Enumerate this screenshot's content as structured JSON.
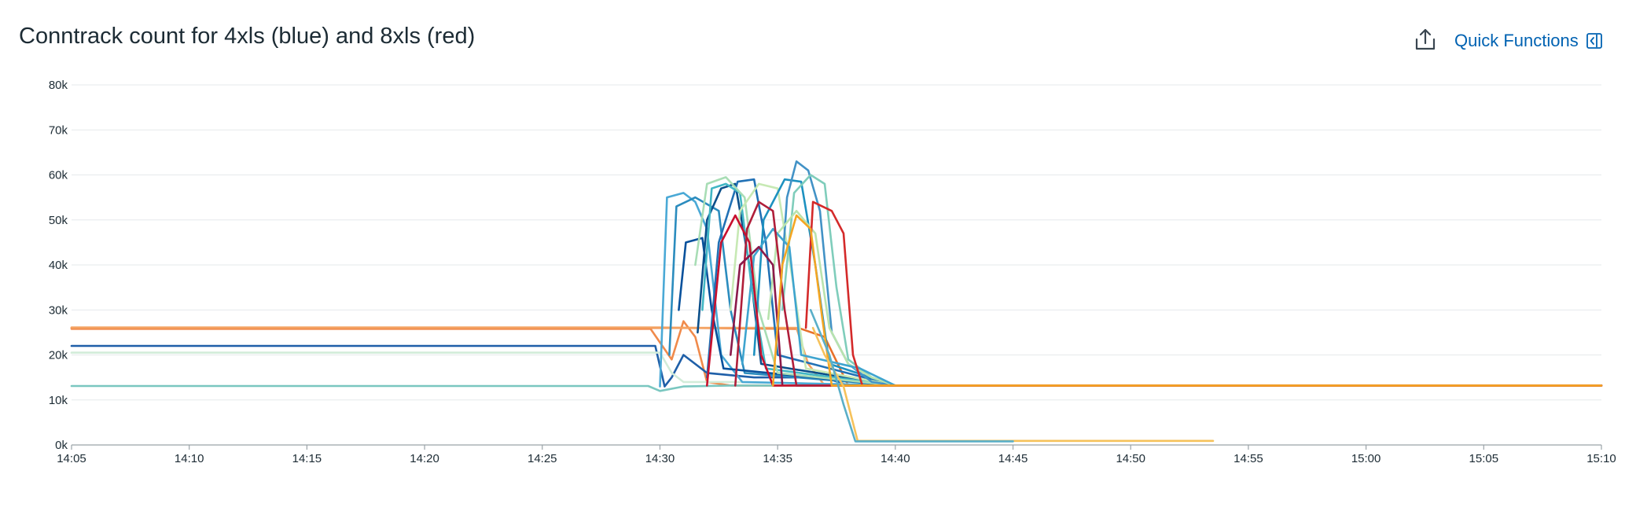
{
  "panel": {
    "title": "Conntrack count for 4xls (blue) and 8xls (red)",
    "quick_functions_label": "Quick Functions",
    "export_icon": "export-icon",
    "panel_toggle_icon": "collapse-panel-icon"
  },
  "colors": {
    "grid": "#e6e9eb",
    "axis": "#9aa3a8",
    "link": "#0062b2",
    "palette": [
      "#08519c",
      "#2171b5",
      "#4292c6",
      "#41b6c4",
      "#7fcdbb",
      "#a8ddb5",
      "#c7e9b4",
      "#d4efc4",
      "#1d91c0",
      "#0b4f8a",
      "#3ea4cf",
      "#b9e3ae"
    ]
  },
  "chart_data": {
    "type": "line",
    "title": "Conntrack count for 4xls (blue) and 8xls (red)",
    "xlabel": "",
    "ylabel": "",
    "x_ticks": [
      "14:05",
      "14:10",
      "14:15",
      "14:20",
      "14:25",
      "14:30",
      "14:35",
      "14:40",
      "14:45",
      "14:50",
      "14:55",
      "15:00",
      "15:05",
      "15:10"
    ],
    "y_ticks": [
      "0k",
      "10k",
      "20k",
      "30k",
      "40k",
      "50k",
      "60k",
      "70k",
      "80k"
    ],
    "xlim": [
      "14:05",
      "15:10"
    ],
    "ylim": [
      0,
      80000
    ],
    "grid": true,
    "legend": "none",
    "series": [
      {
        "color": "#e8702a",
        "values": [
          [
            "14:05",
            26000
          ],
          [
            "14:29.5",
            26000
          ],
          [
            "14:31",
            26000
          ],
          [
            "14:36",
            25800
          ],
          [
            "14:37",
            24000
          ],
          [
            "14:38",
            13200
          ],
          [
            "15:10",
            13200
          ]
        ]
      },
      {
        "color": "#f08a4b",
        "values": [
          [
            "14:05",
            25800
          ],
          [
            "14:29.6",
            25800
          ],
          [
            "14:30.5",
            19000
          ],
          [
            "14:31",
            27500
          ],
          [
            "14:31.5",
            24000
          ],
          [
            "14:32",
            14000
          ],
          [
            "14:33",
            13200
          ],
          [
            "15:10",
            13200
          ]
        ]
      },
      {
        "color": "#f4a261",
        "values": [
          [
            "14:05",
            26100
          ],
          [
            "14:30",
            26100
          ],
          [
            "14:31",
            26000
          ],
          [
            "14:35.8",
            26000
          ],
          [
            "14:36.3",
            18000
          ],
          [
            "14:37",
            13200
          ],
          [
            "15:10",
            13200
          ]
        ]
      },
      {
        "color": "#1f5fa8",
        "values": [
          [
            "14:05",
            22000
          ],
          [
            "14:29.8",
            22000
          ],
          [
            "14:30.2",
            13000
          ],
          [
            "14:30.5",
            15000
          ],
          [
            "14:31",
            20000
          ],
          [
            "14:32",
            16000
          ],
          [
            "14:34",
            15000
          ],
          [
            "14:37",
            15000
          ],
          [
            "14:38",
            13200
          ],
          [
            "15:10",
            13200
          ]
        ]
      },
      {
        "color": "#d2ecd9",
        "values": [
          [
            "14:05",
            20500
          ],
          [
            "14:30",
            20500
          ],
          [
            "14:30.5",
            16000
          ],
          [
            "14:31",
            14000
          ],
          [
            "14:33",
            14000
          ],
          [
            "14:38",
            13500
          ],
          [
            "14:40",
            13200
          ],
          [
            "15:10",
            13200
          ]
        ]
      },
      {
        "color": "#7ac7c0",
        "values": [
          [
            "14:05",
            13100
          ],
          [
            "14:29.5",
            13100
          ],
          [
            "14:30",
            12000
          ],
          [
            "14:31",
            13000
          ],
          [
            "14:33",
            13200
          ],
          [
            "15:10",
            13200
          ]
        ]
      },
      {
        "color": "#4aa9d6",
        "values": [
          [
            "14:30",
            13000
          ],
          [
            "14:30.3",
            55000
          ],
          [
            "14:31",
            56000
          ],
          [
            "14:31.5",
            54000
          ],
          [
            "14:32",
            48000
          ],
          [
            "14:32.6",
            20000
          ],
          [
            "14:33.5",
            14000
          ],
          [
            "14:40",
            13200
          ]
        ]
      },
      {
        "color": "#2b8cbe",
        "values": [
          [
            "14:30.4",
            20000
          ],
          [
            "14:30.7",
            53000
          ],
          [
            "14:31.5",
            55000
          ],
          [
            "14:32.5",
            52000
          ],
          [
            "14:33",
            30000
          ],
          [
            "14:33.6",
            16000
          ],
          [
            "14:40",
            13200
          ]
        ]
      },
      {
        "color": "#08519c",
        "values": [
          [
            "14:30.8",
            30000
          ],
          [
            "14:31.1",
            45000
          ],
          [
            "14:31.8",
            46000
          ],
          [
            "14:32.2",
            30000
          ],
          [
            "14:32.7",
            17000
          ],
          [
            "14:40",
            13200
          ]
        ]
      },
      {
        "color": "#0b4f8a",
        "values": [
          [
            "14:31.6",
            25000
          ],
          [
            "14:32",
            50000
          ],
          [
            "14:32.6",
            57000
          ],
          [
            "14:33.2",
            58000
          ],
          [
            "14:33.8",
            40000
          ],
          [
            "14:34.3",
            18000
          ],
          [
            "14:40",
            13200
          ]
        ]
      },
      {
        "color": "#2171b5",
        "values": [
          [
            "14:32",
            15000
          ],
          [
            "14:32.5",
            45000
          ],
          [
            "14:33.3",
            58500
          ],
          [
            "14:34",
            59000
          ],
          [
            "14:34.5",
            45000
          ],
          [
            "14:35",
            20000
          ],
          [
            "14:40",
            13200
          ]
        ]
      },
      {
        "color": "#41b6c4",
        "values": [
          [
            "14:31.8",
            30000
          ],
          [
            "14:32.2",
            57000
          ],
          [
            "14:32.8",
            58000
          ],
          [
            "14:33.4",
            56000
          ],
          [
            "14:33.9",
            35000
          ],
          [
            "14:34.5",
            17000
          ],
          [
            "14:40",
            13200
          ]
        ]
      },
      {
        "color": "#a8ddb5",
        "values": [
          [
            "14:31.5",
            40000
          ],
          [
            "14:32",
            58000
          ],
          [
            "14:32.8",
            59500
          ],
          [
            "14:33.6",
            55000
          ],
          [
            "14:34.2",
            30000
          ],
          [
            "14:35",
            16000
          ],
          [
            "14:40",
            13200
          ]
        ]
      },
      {
        "color": "#c7e9b4",
        "values": [
          [
            "14:33",
            30000
          ],
          [
            "14:33.4",
            52000
          ],
          [
            "14:34.2",
            58000
          ],
          [
            "14:35",
            57000
          ],
          [
            "14:35.6",
            38000
          ],
          [
            "14:36.2",
            17000
          ],
          [
            "14:40",
            13200
          ]
        ]
      },
      {
        "color": "#1d91c0",
        "values": [
          [
            "14:34",
            20000
          ],
          [
            "14:34.4",
            50000
          ],
          [
            "14:35.3",
            59000
          ],
          [
            "14:36",
            58500
          ],
          [
            "14:36.6",
            40000
          ],
          [
            "14:37.2",
            18000
          ],
          [
            "14:40",
            13200
          ]
        ]
      },
      {
        "color": "#4292c6",
        "values": [
          [
            "14:35",
            25000
          ],
          [
            "14:35.4",
            55000
          ],
          [
            "14:35.8",
            63000
          ],
          [
            "14:36.3",
            61000
          ],
          [
            "14:36.8",
            52000
          ],
          [
            "14:37.3",
            25000
          ],
          [
            "14:38",
            18000
          ],
          [
            "14:39",
            14000
          ],
          [
            "14:40",
            13200
          ]
        ]
      },
      {
        "color": "#7fcdbb",
        "values": [
          [
            "14:35.2",
            30000
          ],
          [
            "14:35.7",
            56000
          ],
          [
            "14:36.4",
            60000
          ],
          [
            "14:37",
            58000
          ],
          [
            "14:37.5",
            35000
          ],
          [
            "14:38",
            19000
          ],
          [
            "14:39",
            15000
          ],
          [
            "14:40",
            13200
          ]
        ]
      },
      {
        "color": "#b9e3ae",
        "values": [
          [
            "14:34.6",
            28000
          ],
          [
            "14:35",
            47000
          ],
          [
            "14:35.8",
            52000
          ],
          [
            "14:36.6",
            47000
          ],
          [
            "14:37.2",
            26000
          ],
          [
            "14:38",
            18000
          ],
          [
            "14:39",
            15000
          ],
          [
            "14:40",
            13200
          ]
        ]
      },
      {
        "color": "#3ea4cf",
        "values": [
          [
            "14:33.5",
            18000
          ],
          [
            "14:34",
            42000
          ],
          [
            "14:34.8",
            48000
          ],
          [
            "14:35.5",
            44000
          ],
          [
            "14:36",
            20000
          ],
          [
            "14:38.5",
            17000
          ],
          [
            "14:40",
            13200
          ]
        ]
      },
      {
        "color": "#c8102e",
        "values": [
          [
            "14:32",
            13200
          ],
          [
            "14:32.6",
            45000
          ],
          [
            "14:33.2",
            51000
          ],
          [
            "14:33.8",
            45000
          ],
          [
            "14:34.3",
            20000
          ],
          [
            "14:34.8",
            13200
          ],
          [
            "15:10",
            13200
          ]
        ]
      },
      {
        "color": "#b01e3a",
        "values": [
          [
            "14:33.2",
            13200
          ],
          [
            "14:33.7",
            48000
          ],
          [
            "14:34.2",
            54000
          ],
          [
            "14:34.8",
            52000
          ],
          [
            "14:35.3",
            30000
          ],
          [
            "14:35.8",
            13200
          ],
          [
            "15:10",
            13200
          ]
        ]
      },
      {
        "color": "#8b1a4a",
        "values": [
          [
            "14:33",
            20000
          ],
          [
            "14:33.4",
            40000
          ],
          [
            "14:34.2",
            44000
          ],
          [
            "14:34.8",
            40000
          ],
          [
            "14:35.2",
            13500
          ]
        ]
      },
      {
        "color": "#d42a2a",
        "values": [
          [
            "14:36.2",
            26000
          ],
          [
            "14:36.5",
            54000
          ],
          [
            "14:37.3",
            52000
          ],
          [
            "14:37.8",
            47000
          ],
          [
            "14:38.2",
            20000
          ],
          [
            "14:38.6",
            13200
          ],
          [
            "15:10",
            13200
          ]
        ]
      },
      {
        "color": "#f5a623",
        "values": [
          [
            "14:34.8",
            13200
          ],
          [
            "14:35.2",
            40000
          ],
          [
            "14:35.8",
            51000
          ],
          [
            "14:36.4",
            48000
          ],
          [
            "14:36.9",
            28000
          ],
          [
            "14:37.3",
            13200
          ],
          [
            "15:10",
            13200
          ]
        ]
      },
      {
        "color": "#f6c25b",
        "values": [
          [
            "14:36.5",
            26000
          ],
          [
            "14:37",
            20000
          ],
          [
            "14:37.8",
            13000
          ],
          [
            "14:38.4",
            900
          ],
          [
            "14:53.5",
            900
          ]
        ]
      },
      {
        "color": "#5aafc8",
        "values": [
          [
            "14:36.4",
            30000
          ],
          [
            "14:37.2",
            20000
          ],
          [
            "14:37.8",
            9000
          ],
          [
            "14:38.3",
            800
          ],
          [
            "14:45",
            800
          ]
        ]
      }
    ]
  }
}
